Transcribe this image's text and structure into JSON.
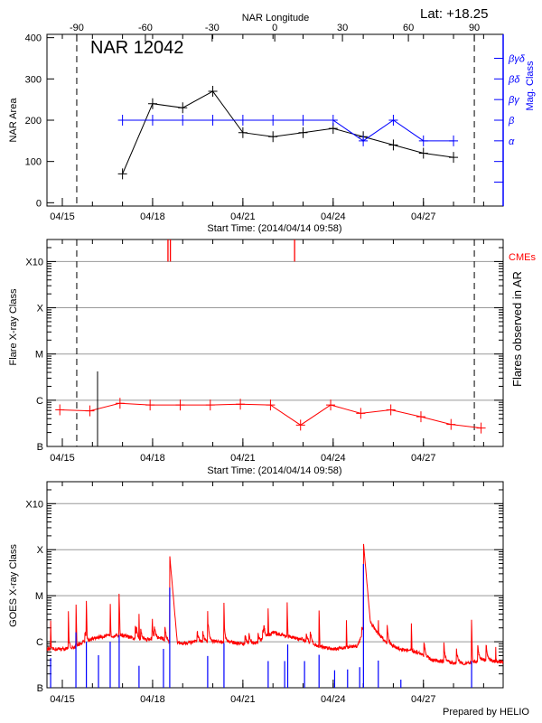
{
  "header": {
    "lat_label": "Lat: +18.25",
    "footer": "Prepared by HELIO"
  },
  "chart_data": [
    {
      "type": "line",
      "title": "NAR 12042",
      "top_xlabel": "NAR Longitude",
      "xlabel": "Start Time: (2014/04/14 09:58)",
      "ylabel": "NAR Area",
      "y2label": "Mag. Class",
      "xlim": [
        "04/14 11:45",
        "04/29 15:35"
      ],
      "ylim": [
        -8,
        408
      ],
      "x_ticks": [
        "04/15",
        "04/18",
        "04/21",
        "04/24",
        "04/27"
      ],
      "y_ticks": [
        0,
        100,
        200,
        300,
        400
      ],
      "top_ticks": [
        {
          "label": "-90",
          "at": "04/15 11:30"
        },
        {
          "label": "-60",
          "at": "04/17 18:15"
        },
        {
          "label": "-30",
          "at": "04/19 23:30"
        },
        {
          "label": "0",
          "at": "04/22 01:25"
        },
        {
          "label": "30",
          "at": "04/24 07:25"
        },
        {
          "label": "60",
          "at": "04/26 12:00"
        },
        {
          "label": "90",
          "at": "04/28 16:35"
        }
      ],
      "y2_ticks": [
        {
          "value": 50,
          "label": ""
        },
        {
          "value": 100,
          "label": ""
        },
        {
          "value": 150,
          "label": "α"
        },
        {
          "value": 200,
          "label": "β"
        },
        {
          "value": 250,
          "label": "βγ"
        },
        {
          "value": 300,
          "label": "βδ"
        },
        {
          "value": 350,
          "label": "βγδ"
        }
      ],
      "dashed_lines": [
        "04/15 11:30",
        "04/28 16:35"
      ],
      "series": [
        {
          "color": "#000000",
          "x": [
            "04/17",
            "04/18",
            "04/19",
            "04/20",
            "04/21",
            "04/22",
            "04/23",
            "04/24",
            "04/25",
            "04/26",
            "04/27",
            "04/28"
          ],
          "y": [
            70,
            240,
            230,
            270,
            170,
            160,
            170,
            180,
            160,
            140,
            120,
            110
          ]
        },
        {
          "color": "#0000ff",
          "x": [
            "04/17",
            "04/18",
            "04/19",
            "04/20",
            "04/21",
            "04/22",
            "04/23",
            "04/24",
            "04/25",
            "04/26",
            "04/27",
            "04/28"
          ],
          "y_class": [
            "β",
            "β",
            "β",
            "β",
            "β",
            "β",
            "β",
            "β",
            "α",
            "β",
            "α",
            "α"
          ]
        }
      ]
    },
    {
      "type": "line",
      "xlabel": "Start Time: (2014/04/14 09:58)",
      "ylabel": "Flare X-ray Class",
      "y2label": "Flares observed in AR",
      "cme_label": "CMEs",
      "y_scale": "log",
      "xlim": [
        "04/14 11:45",
        "04/29 15:35"
      ],
      "ylim": [
        "B1.0",
        "X30"
      ],
      "x_ticks": [
        "04/15",
        "04/18",
        "04/21",
        "04/24",
        "04/27"
      ],
      "y_ticks": [
        {
          "label": "B",
          "value": "B1.0"
        },
        {
          "label": "C",
          "value": "C1.0"
        },
        {
          "label": "M",
          "value": "M1.0"
        },
        {
          "label": "X",
          "value": "X1.0"
        },
        {
          "label": "X10",
          "value": "X10"
        }
      ],
      "grid": true,
      "dashed_lines": [
        "04/15 11:30",
        "04/28 16:35"
      ],
      "series": [
        {
          "color": "#ff0000",
          "x": [
            "04/14 22:00",
            "04/15 22:00",
            "04/16 22:00",
            "04/17 22:00",
            "04/18 22:00",
            "04/19 22:00",
            "04/20 22:00",
            "04/21 22:00",
            "04/22 22:00",
            "04/23 22:00",
            "04/24 22:00",
            "04/25 22:00",
            "04/26 22:00",
            "04/27 22:00",
            "04/28 22:00"
          ],
          "y": [
            "B6.2",
            "B5.9",
            "B8.6",
            "B7.9",
            "B7.9",
            "B7.9",
            "B8.2",
            "B7.9",
            "B2.9",
            "B7.9",
            "B5.2",
            "B6.2",
            "B4.4",
            "B3.0",
            "B2.5"
          ]
        }
      ],
      "flare_markers": [
        {
          "x": "04/16 04:05",
          "y": "C4.2",
          "color": "#000000"
        }
      ],
      "cmes": [
        "04/18 12:15",
        "04/18 14:10",
        "04/22 17:15"
      ]
    },
    {
      "type": "line",
      "ylabel": "GOES X-ray Class",
      "y_scale": "log",
      "xlim": [
        "04/14 11:45",
        "04/29 15:35"
      ],
      "ylim": [
        "B1.0",
        "X30"
      ],
      "x_ticks": [
        "04/15",
        "04/18",
        "04/21",
        "04/24",
        "04/27"
      ],
      "y_ticks": [
        {
          "label": "B",
          "value": "B1.0"
        },
        {
          "label": "C",
          "value": "C1.0"
        },
        {
          "label": "M",
          "value": "M1.0"
        },
        {
          "label": "X",
          "value": "X1.0"
        },
        {
          "label": "X10",
          "value": "X10"
        }
      ],
      "grid": true,
      "long_channel": {
        "color": "#ff0000",
        "baseline": [
          [
            "04/14 12:00",
            "B6.9"
          ],
          [
            "04/15 07:10",
            "B7.0"
          ],
          [
            "04/15 16:50",
            "C1.0"
          ],
          [
            "04/16 07:10",
            "C1.3"
          ],
          [
            "04/17 00:00",
            "C1.4"
          ],
          [
            "04/17 12:00",
            "C1.1"
          ],
          [
            "04/18 07:10",
            "C1.2"
          ],
          [
            "04/18 16:50",
            "B9.0"
          ],
          [
            "04/19 12:00",
            "C1.0"
          ],
          [
            "04/20 12:00",
            "C1.0"
          ],
          [
            "04/21 00:00",
            "B9.0"
          ],
          [
            "04/21 12:00",
            "B9.5"
          ],
          [
            "04/22 00:00",
            "C1.6"
          ],
          [
            "04/22 12:00",
            "C1.3"
          ],
          [
            "04/23 00:00",
            "C1.1"
          ],
          [
            "04/23 12:00",
            "B8.0"
          ],
          [
            "04/24 00:00",
            "B7.0"
          ],
          [
            "04/24 19:10",
            "B8.0"
          ],
          [
            "04/25 04:50",
            "C3.0"
          ],
          [
            "04/25 09:35",
            "C1.8"
          ],
          [
            "04/25 19:10",
            "B9.0"
          ],
          [
            "04/26 04:50",
            "B7.0"
          ],
          [
            "04/26 19:10",
            "B6.0"
          ],
          [
            "04/27 07:10",
            "B4.0"
          ],
          [
            "04/28 00:00",
            "B3.5"
          ],
          [
            "04/28 12:00",
            "B3.4"
          ],
          [
            "04/29 00:00",
            "B4.0"
          ],
          [
            "04/29 15:35",
            "B3.6"
          ]
        ],
        "peaks": [
          [
            "04/14 14:40",
            "C3.4"
          ],
          [
            "04/15 04:50",
            "C4.6"
          ],
          [
            "04/15 10:50",
            "C9.0"
          ],
          [
            "04/15 19:10",
            "C7.7"
          ],
          [
            "04/16 14:10",
            "C7.7"
          ],
          [
            "04/16 21:20",
            "M1.1"
          ],
          [
            "04/17 13:10",
            "C4.1"
          ],
          [
            "04/17 23:50",
            "C3.3"
          ],
          [
            "04/18 13:40",
            "M7.4"
          ],
          [
            "04/19 19:55",
            "C4.9"
          ],
          [
            "04/20 08:55",
            "C7.0"
          ],
          [
            "04/21 20:10",
            "C5.3"
          ],
          [
            "04/22 11:15",
            "C9.2"
          ],
          [
            "04/23 12:45",
            "C5.3"
          ],
          [
            "04/24 10:35",
            "C3.1"
          ],
          [
            "04/25 00:10",
            "X1.4"
          ],
          [
            "04/25 12:00",
            "C3.4"
          ],
          [
            "04/26 14:25",
            "C2.5"
          ],
          [
            "04/28 14:25",
            "C3.0"
          ],
          [
            "04/29 09:35",
            "C1.0"
          ]
        ]
      },
      "short_channel": {
        "color": "#0000ff",
        "peaks": [
          [
            "04/14 14:40",
            "B4.4"
          ],
          [
            "04/15 10:50",
            "C1.6"
          ],
          [
            "04/15 19:10",
            "C1.0"
          ],
          [
            "04/16 04:50",
            "B5.1"
          ],
          [
            "04/16 14:10",
            "C1.0"
          ],
          [
            "04/16 21:20",
            "C1.4"
          ],
          [
            "04/17 13:10",
            "B3.0"
          ],
          [
            "04/18 08:40",
            "B7.0"
          ],
          [
            "04/18 13:40",
            "M1.5"
          ],
          [
            "04/19 19:55",
            "B4.9"
          ],
          [
            "04/20 08:55",
            "B9.4"
          ],
          [
            "04/21 20:10",
            "B3.8"
          ],
          [
            "04/22 09:20",
            "B3.8"
          ],
          [
            "04/22 11:45",
            "B8.7"
          ],
          [
            "04/23 01:10",
            "B3.8"
          ],
          [
            "04/23 12:45",
            "B5.2"
          ],
          [
            "04/24 01:10",
            "B2.4"
          ],
          [
            "04/24 11:30",
            "B2.5"
          ],
          [
            "04/24 21:10",
            "B2.8"
          ],
          [
            "04/25 00:10",
            "M4.9"
          ],
          [
            "04/25 12:00",
            "B3.9"
          ],
          [
            "04/26 06:00",
            "B1.5"
          ],
          [
            "04/28 14:25",
            "B3.8"
          ]
        ]
      }
    }
  ]
}
